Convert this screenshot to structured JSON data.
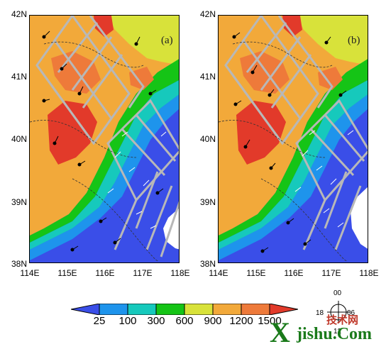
{
  "panels": [
    {
      "id": "a",
      "label": "(a)"
    },
    {
      "id": "b",
      "label": "(b)"
    }
  ],
  "lat_labels": [
    "42N",
    "41N",
    "40N",
    "39N",
    "38N"
  ],
  "lon_labels": [
    "114E",
    "115E",
    "116E",
    "117E",
    "118E"
  ],
  "colorbar": {
    "ticks": [
      "25",
      "100",
      "300",
      "600",
      "900",
      "1200",
      "1500"
    ],
    "colors": [
      "#3a4ee8",
      "#1e94ec",
      "#16c9bc",
      "#15c416",
      "#d8e23a",
      "#f2a93a",
      "#ee7a3a",
      "#e23a2a"
    ]
  },
  "compass": {
    "n": "00",
    "w": "18",
    "e": "06",
    "s": "12"
  },
  "watermark": {
    "brand": "X",
    "site": "jishu.Com",
    "cn": "技术网"
  }
}
